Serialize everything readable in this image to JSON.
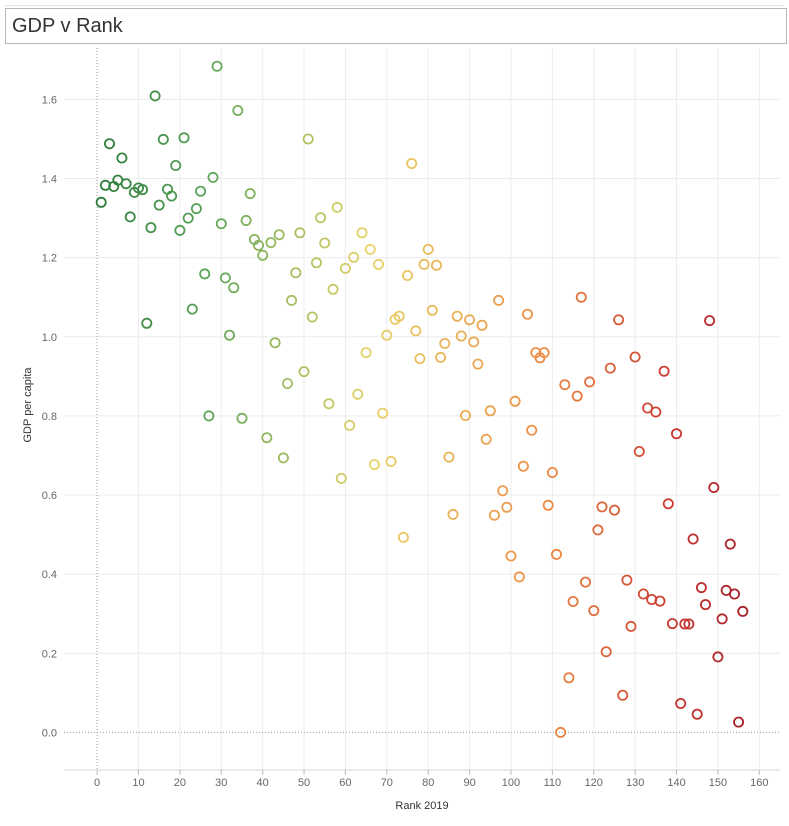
{
  "header": {
    "title": "GDP v Rank"
  },
  "chart_data": {
    "type": "scatter",
    "title": "GDP v Rank",
    "xlabel": "Rank 2019",
    "ylabel": "GDP per capita",
    "xlim": [
      -8,
      165
    ],
    "ylim": [
      -0.095,
      1.73
    ],
    "xticks": [
      0,
      10,
      20,
      30,
      40,
      50,
      60,
      70,
      80,
      90,
      100,
      110,
      120,
      130,
      140,
      150,
      160
    ],
    "yticks": [
      0.0,
      0.2,
      0.4,
      0.6,
      0.8,
      1.0,
      1.2,
      1.4,
      1.6
    ],
    "ytick_labels": [
      "0.0",
      "0.2",
      "0.4",
      "0.6",
      "0.8",
      "1.0",
      "1.2",
      "1.4",
      "1.6"
    ],
    "grid": true,
    "marker": "hollow-circle",
    "color_encoding": "rank, green (low rank) to yellow to orange to red (high rank)",
    "colors": {
      "start": "#2f7d3c",
      "green": "#5aa55a",
      "yellow": "#e8d46a",
      "orange": "#ec8a45",
      "red": "#c8352f",
      "end": "#a8202a"
    },
    "points": [
      [
        1,
        1.34
      ],
      [
        2,
        1.383
      ],
      [
        3,
        1.488
      ],
      [
        4,
        1.38
      ],
      [
        5,
        1.396
      ],
      [
        6,
        1.452
      ],
      [
        7,
        1.387
      ],
      [
        8,
        1.303
      ],
      [
        9,
        1.365
      ],
      [
        10,
        1.376
      ],
      [
        11,
        1.372
      ],
      [
        12,
        1.034
      ],
      [
        13,
        1.276
      ],
      [
        14,
        1.609
      ],
      [
        15,
        1.333
      ],
      [
        16,
        1.499
      ],
      [
        17,
        1.373
      ],
      [
        18,
        1.356
      ],
      [
        19,
        1.433
      ],
      [
        20,
        1.269
      ],
      [
        21,
        1.503
      ],
      [
        22,
        1.3
      ],
      [
        23,
        1.07
      ],
      [
        24,
        1.324
      ],
      [
        25,
        1.368
      ],
      [
        26,
        1.159
      ],
      [
        27,
        0.8
      ],
      [
        28,
        1.403
      ],
      [
        29,
        1.684
      ],
      [
        30,
        1.286
      ],
      [
        31,
        1.149
      ],
      [
        32,
        1.004
      ],
      [
        33,
        1.124
      ],
      [
        34,
        1.572
      ],
      [
        35,
        0.794
      ],
      [
        36,
        1.294
      ],
      [
        37,
        1.362
      ],
      [
        38,
        1.246
      ],
      [
        39,
        1.231
      ],
      [
        40,
        1.206
      ],
      [
        41,
        0.745
      ],
      [
        42,
        1.238
      ],
      [
        43,
        0.985
      ],
      [
        44,
        1.258
      ],
      [
        45,
        0.694
      ],
      [
        46,
        0.882
      ],
      [
        47,
        1.092
      ],
      [
        48,
        1.162
      ],
      [
        49,
        1.263
      ],
      [
        50,
        0.912
      ],
      [
        51,
        1.5
      ],
      [
        52,
        1.05
      ],
      [
        53,
        1.187
      ],
      [
        54,
        1.301
      ],
      [
        55,
        1.237
      ],
      [
        56,
        0.831
      ],
      [
        57,
        1.12
      ],
      [
        58,
        1.327
      ],
      [
        59,
        0.642
      ],
      [
        60,
        1.173
      ],
      [
        61,
        0.776
      ],
      [
        62,
        1.201
      ],
      [
        63,
        0.855
      ],
      [
        64,
        1.263
      ],
      [
        65,
        0.96
      ],
      [
        66,
        1.221
      ],
      [
        67,
        0.677
      ],
      [
        68,
        1.183
      ],
      [
        69,
        0.807
      ],
      [
        70,
        1.004
      ],
      [
        71,
        0.685
      ],
      [
        72,
        1.044
      ],
      [
        73,
        1.052
      ],
      [
        74,
        0.493
      ],
      [
        75,
        1.155
      ],
      [
        76,
        1.438
      ],
      [
        77,
        1.015
      ],
      [
        78,
        0.945
      ],
      [
        79,
        1.183
      ],
      [
        80,
        1.221
      ],
      [
        81,
        1.067
      ],
      [
        82,
        1.181
      ],
      [
        83,
        0.948
      ],
      [
        84,
        0.983
      ],
      [
        85,
        0.696
      ],
      [
        86,
        0.551
      ],
      [
        87,
        1.052
      ],
      [
        88,
        1.002
      ],
      [
        89,
        0.801
      ],
      [
        90,
        1.043
      ],
      [
        91,
        0.987
      ],
      [
        92,
        0.931
      ],
      [
        93,
        1.029
      ],
      [
        94,
        0.741
      ],
      [
        95,
        0.813
      ],
      [
        96,
        0.549
      ],
      [
        97,
        1.092
      ],
      [
        98,
        0.611
      ],
      [
        99,
        0.569
      ],
      [
        100,
        0.446
      ],
      [
        101,
        0.837
      ],
      [
        102,
        0.393
      ],
      [
        103,
        0.673
      ],
      [
        104,
        1.057
      ],
      [
        105,
        0.764
      ],
      [
        106,
        0.96
      ],
      [
        107,
        0.947
      ],
      [
        108,
        0.96
      ],
      [
        109,
        0.574
      ],
      [
        110,
        0.657
      ],
      [
        111,
        0.45
      ],
      [
        112,
        0.0
      ],
      [
        113,
        0.879
      ],
      [
        114,
        0.138
      ],
      [
        115,
        0.331
      ],
      [
        116,
        0.85
      ],
      [
        117,
        1.1
      ],
      [
        118,
        0.38
      ],
      [
        119,
        0.886
      ],
      [
        120,
        0.308
      ],
      [
        121,
        0.512
      ],
      [
        122,
        0.57
      ],
      [
        123,
        0.204
      ],
      [
        124,
        0.921
      ],
      [
        125,
        0.562
      ],
      [
        126,
        1.043
      ],
      [
        127,
        0.094
      ],
      [
        128,
        0.385
      ],
      [
        129,
        0.268
      ],
      [
        130,
        0.949
      ],
      [
        131,
        0.71
      ],
      [
        132,
        0.35
      ],
      [
        133,
        0.82
      ],
      [
        134,
        0.336
      ],
      [
        135,
        0.81
      ],
      [
        136,
        0.332
      ],
      [
        137,
        0.913
      ],
      [
        138,
        0.578
      ],
      [
        139,
        0.275
      ],
      [
        140,
        0.755
      ],
      [
        141,
        0.073
      ],
      [
        142,
        0.274
      ],
      [
        143,
        0.274
      ],
      [
        144,
        0.489
      ],
      [
        145,
        0.046
      ],
      [
        146,
        0.366
      ],
      [
        147,
        0.323
      ],
      [
        148,
        1.041
      ],
      [
        149,
        0.619
      ],
      [
        150,
        0.191
      ],
      [
        151,
        0.287
      ],
      [
        152,
        0.359
      ],
      [
        153,
        0.476
      ],
      [
        154,
        0.35
      ],
      [
        155,
        0.026
      ],
      [
        156,
        0.306
      ]
    ]
  }
}
